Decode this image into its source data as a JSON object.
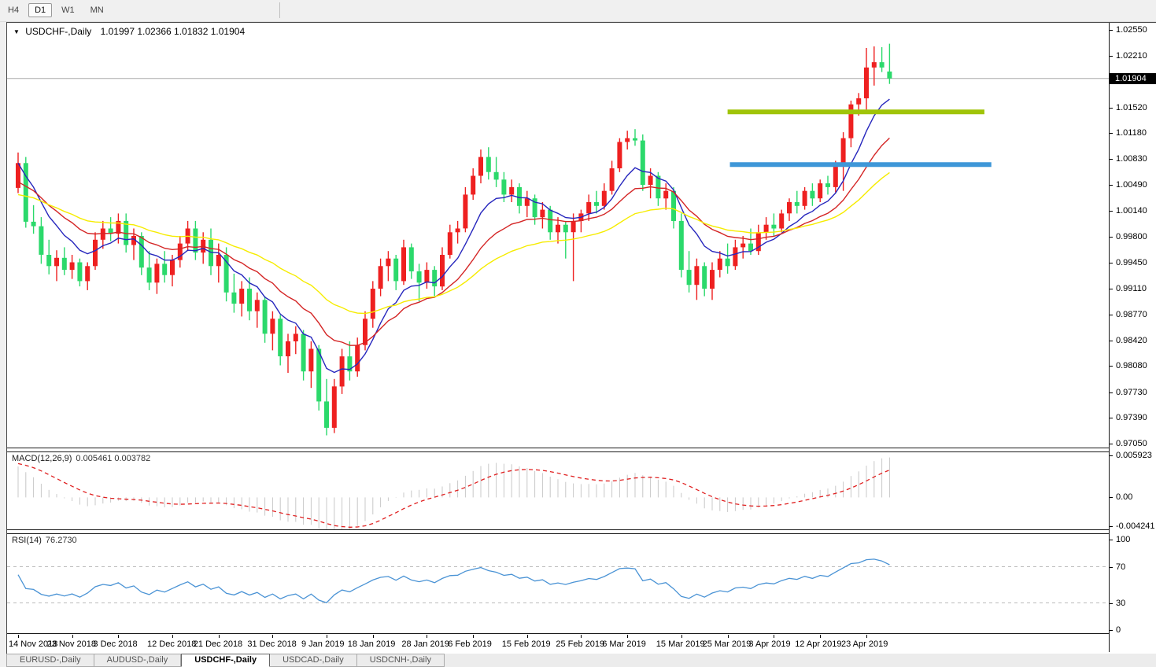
{
  "toolbar": {
    "buttons": [
      {
        "label": "H4",
        "active": false
      },
      {
        "label": "D1",
        "active": true
      },
      {
        "label": "W1",
        "active": false
      },
      {
        "label": "MN",
        "active": false
      }
    ]
  },
  "title": {
    "symbol": "USDCHF-,Daily",
    "ohlc": "1.01997 1.02366 1.01832 1.01904"
  },
  "tabs": [
    {
      "label": "EURUSD-,Daily",
      "active": false
    },
    {
      "label": "AUDUSD-,Daily",
      "active": false
    },
    {
      "label": "USDCHF-,Daily",
      "active": true
    },
    {
      "label": "USDCAD-,Daily",
      "active": false
    },
    {
      "label": "USDCNH-,Daily",
      "active": false
    }
  ],
  "chart_data": {
    "type": "candlestick",
    "symbol": "USDCHF",
    "timeframe": "Daily",
    "last_candle": {
      "open": 1.01997,
      "high": 1.02366,
      "low": 1.01832,
      "close": 1.01904
    },
    "colors": {
      "bull": "#ee2020",
      "bear": "#2bd96b",
      "ma_fast": "#2626bd",
      "ma_mid": "#d42525",
      "ma_slow": "#f6ec00",
      "hline_olive": "#a0c408",
      "hline_blue": "#3e97d8",
      "current_price_line": "#a8a8a8",
      "macd_hist": "#c8c8c8",
      "macd_signal": "#e02020",
      "rsi_line": "#4a93d5",
      "rsi_levels": "#bbbbbb"
    },
    "price_axis": {
      "max": 1.0255,
      "min": 0.9705,
      "labels": [
        "1.02550",
        "1.02210",
        "1.01520",
        "1.01180",
        "1.00830",
        "1.00490",
        "1.00140",
        "0.99800",
        "0.99450",
        "0.99110",
        "0.98770",
        "0.98420",
        "0.98080",
        "0.97730",
        "0.97390",
        "0.97050"
      ],
      "current": "1.01904",
      "current_value": 1.01904
    },
    "x_labels": [
      {
        "t": "14 Nov 2018",
        "i": 0
      },
      {
        "t": "23 Nov 2018",
        "i": 7
      },
      {
        "t": "3 Dec 2018",
        "i": 13
      },
      {
        "t": "12 Dec 2018",
        "i": 20
      },
      {
        "t": "21 Dec 2018",
        "i": 26
      },
      {
        "t": "31 Dec 2018",
        "i": 33
      },
      {
        "t": "9 Jan 2019",
        "i": 40
      },
      {
        "t": "18 Jan 2019",
        "i": 46
      },
      {
        "t": "28 Jan 2019",
        "i": 53
      },
      {
        "t": "6 Feb 2019",
        "i": 59
      },
      {
        "t": "15 Feb 2019",
        "i": 66
      },
      {
        "t": "25 Feb 2019",
        "i": 73
      },
      {
        "t": "6 Mar 2019",
        "i": 79
      },
      {
        "t": "15 Mar 2019",
        "i": 86
      },
      {
        "t": "25 Mar 2019",
        "i": 92
      },
      {
        "t": "3 Apr 2019",
        "i": 98
      },
      {
        "t": "12 Apr 2019",
        "i": 104
      },
      {
        "t": "23 Apr 2019",
        "i": 110
      }
    ],
    "candles": [
      [
        1.0045,
        1.0092,
        1.0038,
        1.0078
      ],
      [
        1.0078,
        1.0086,
        0.9992,
        1.0
      ],
      [
        1.0,
        1.0022,
        0.9984,
        0.9994
      ],
      [
        0.9994,
        1.0006,
        0.9944,
        0.9956
      ],
      [
        0.9956,
        0.9976,
        0.993,
        0.9941
      ],
      [
        0.9941,
        0.9962,
        0.9921,
        0.9952
      ],
      [
        0.9952,
        0.9966,
        0.9929,
        0.9936
      ],
      [
        0.9936,
        0.9956,
        0.9924,
        0.9946
      ],
      [
        0.9946,
        0.9951,
        0.9914,
        0.9921
      ],
      [
        0.9921,
        0.9946,
        0.9909,
        0.9941
      ],
      [
        0.9941,
        0.9986,
        0.9936,
        0.9976
      ],
      [
        0.9976,
        1.0001,
        0.9964,
        0.9991
      ],
      [
        0.9991,
        1.0006,
        0.9974,
        0.9984
      ],
      [
        0.9984,
        1.0011,
        0.9971,
        1.0001
      ],
      [
        1.0001,
        1.0011,
        0.9959,
        0.9969
      ],
      [
        0.9969,
        0.9991,
        0.9949,
        0.9981
      ],
      [
        0.9981,
        0.9986,
        0.9929,
        0.9939
      ],
      [
        0.9939,
        0.9961,
        0.9909,
        0.9919
      ],
      [
        0.9919,
        0.9951,
        0.9904,
        0.9944
      ],
      [
        0.9944,
        0.9961,
        0.9919,
        0.9929
      ],
      [
        0.9929,
        0.9956,
        0.9914,
        0.9949
      ],
      [
        0.9949,
        0.9981,
        0.9939,
        0.9971
      ],
      [
        0.9971,
        1.0001,
        0.9961,
        0.9991
      ],
      [
        0.9991,
        1.0001,
        0.9949,
        0.9959
      ],
      [
        0.9959,
        0.9986,
        0.9944,
        0.9976
      ],
      [
        0.9976,
        0.9991,
        0.9929,
        0.9941
      ],
      [
        0.9941,
        0.9971,
        0.9919,
        0.9956
      ],
      [
        0.9956,
        0.9966,
        0.9894,
        0.9906
      ],
      [
        0.9906,
        0.9931,
        0.9879,
        0.9891
      ],
      [
        0.9891,
        0.9921,
        0.9874,
        0.9911
      ],
      [
        0.9911,
        0.9926,
        0.9869,
        0.9881
      ],
      [
        0.9881,
        0.9906,
        0.9859,
        0.9896
      ],
      [
        0.9896,
        0.9901,
        0.9839,
        0.9851
      ],
      [
        0.9851,
        0.9881,
        0.9829,
        0.9871
      ],
      [
        0.9871,
        0.9876,
        0.9809,
        0.9821
      ],
      [
        0.9821,
        0.9851,
        0.9799,
        0.9841
      ],
      [
        0.9841,
        0.9861,
        0.9824,
        0.9851
      ],
      [
        0.9851,
        0.9856,
        0.9789,
        0.9801
      ],
      [
        0.9801,
        0.9841,
        0.9779,
        0.9831
      ],
      [
        0.9831,
        0.9836,
        0.9749,
        0.9761
      ],
      [
        0.9761,
        0.9791,
        0.9716,
        0.9726
      ],
      [
        0.9726,
        0.9791,
        0.9719,
        0.9781
      ],
      [
        0.9781,
        0.9831,
        0.9771,
        0.9821
      ],
      [
        0.9821,
        0.9841,
        0.9789,
        0.9801
      ],
      [
        0.9801,
        0.9846,
        0.9794,
        0.9836
      ],
      [
        0.9836,
        0.9881,
        0.9829,
        0.9871
      ],
      [
        0.9871,
        0.9921,
        0.9859,
        0.9911
      ],
      [
        0.9911,
        0.9951,
        0.9901,
        0.9941
      ],
      [
        0.9941,
        0.9961,
        0.9921,
        0.9951
      ],
      [
        0.9951,
        0.9956,
        0.9909,
        0.9921
      ],
      [
        0.9921,
        0.9976,
        0.9916,
        0.9966
      ],
      [
        0.9966,
        0.9971,
        0.9924,
        0.9934
      ],
      [
        0.9934,
        0.9944,
        0.9894,
        0.9919
      ],
      [
        0.9919,
        0.9946,
        0.9911,
        0.9936
      ],
      [
        0.9936,
        0.9941,
        0.9901,
        0.9914
      ],
      [
        0.9914,
        0.9966,
        0.9909,
        0.9956
      ],
      [
        0.9956,
        0.9996,
        0.9951,
        0.9986
      ],
      [
        0.9986,
        1.0001,
        0.9971,
        0.9991
      ],
      [
        0.9991,
        1.0046,
        0.9986,
        1.0036
      ],
      [
        1.0036,
        1.0071,
        1.0029,
        1.0061
      ],
      [
        1.0061,
        1.0096,
        1.0051,
        1.0086
      ],
      [
        1.0086,
        1.0099,
        1.0056,
        1.0066
      ],
      [
        1.0066,
        1.0086,
        1.0046,
        1.0056
      ],
      [
        1.0056,
        1.0066,
        1.0026,
        1.0036
      ],
      [
        1.0036,
        1.0056,
        1.0026,
        1.0046
      ],
      [
        1.0046,
        1.0051,
        1.0011,
        1.0021
      ],
      [
        1.0021,
        1.0041,
        1.0006,
        1.0031
      ],
      [
        1.0031,
        1.0036,
        0.9996,
        1.0006
      ],
      [
        1.0006,
        1.0026,
        0.9991,
        1.0016
      ],
      [
        1.0016,
        1.0021,
        0.9976,
        0.9986
      ],
      [
        0.9986,
        1.0006,
        0.9971,
        0.9996
      ],
      [
        0.9996,
        1.0001,
        0.9951,
        0.9986
      ],
      [
        0.9986,
        1.0011,
        0.9921,
        1.0001
      ],
      [
        1.0001,
        1.0016,
        0.9986,
        1.0011
      ],
      [
        1.0011,
        1.0036,
        1.0001,
        1.0026
      ],
      [
        1.0026,
        1.0041,
        1.0011,
        1.0021
      ],
      [
        1.0021,
        1.0051,
        1.0016,
        1.0041
      ],
      [
        1.0041,
        1.0081,
        1.0036,
        1.0071
      ],
      [
        1.0071,
        1.0111,
        1.0066,
        1.0106
      ],
      [
        1.0106,
        1.0121,
        1.0096,
        1.0111
      ],
      [
        1.0111,
        1.0123,
        1.0101,
        1.0108
      ],
      [
        1.0108,
        1.0116,
        1.0041,
        1.0049
      ],
      [
        1.0049,
        1.0071,
        1.0031,
        1.0061
      ],
      [
        1.0061,
        1.0066,
        1.0021,
        1.0031
      ],
      [
        1.0031,
        1.0051,
        1.0016,
        1.0041
      ],
      [
        1.0041,
        1.0046,
        0.9991,
        1.0001
      ],
      [
        1.0001,
        1.0011,
        0.9926,
        0.9936
      ],
      [
        0.9936,
        0.9961,
        0.9906,
        0.9916
      ],
      [
        0.9916,
        0.9951,
        0.9896,
        0.9941
      ],
      [
        0.9941,
        0.9946,
        0.9901,
        0.9911
      ],
      [
        0.9911,
        0.9946,
        0.9896,
        0.9936
      ],
      [
        0.9936,
        0.9961,
        0.9926,
        0.9951
      ],
      [
        0.9951,
        0.9971,
        0.9931,
        0.9941
      ],
      [
        0.9941,
        0.9976,
        0.9936,
        0.9966
      ],
      [
        0.9966,
        0.9981,
        0.9951,
        0.9971
      ],
      [
        0.9971,
        0.9991,
        0.9956,
        0.9961
      ],
      [
        0.9961,
        0.9996,
        0.9956,
        0.9986
      ],
      [
        0.9986,
        1.0006,
        0.9976,
        0.9996
      ],
      [
        0.9996,
        1.0011,
        0.9981,
        0.9991
      ],
      [
        0.9991,
        1.0016,
        0.9986,
        1.0011
      ],
      [
        1.0011,
        1.0031,
        1.0001,
        1.0026
      ],
      [
        1.0026,
        1.0041,
        1.0011,
        1.0021
      ],
      [
        1.0021,
        1.0046,
        1.0016,
        1.0041
      ],
      [
        1.0041,
        1.0051,
        1.0021,
        1.0031
      ],
      [
        1.0031,
        1.0056,
        1.0026,
        1.0051
      ],
      [
        1.0051,
        1.0061,
        1.0036,
        1.0046
      ],
      [
        1.0046,
        1.0081,
        1.0039,
        1.0076
      ],
      [
        1.0076,
        1.0119,
        1.0041,
        1.0111
      ],
      [
        1.0111,
        1.0161,
        1.0099,
        1.0156
      ],
      [
        1.0156,
        1.0171,
        1.0141,
        1.0164
      ],
      [
        1.0164,
        1.0231,
        1.0149,
        1.0205
      ],
      [
        1.0205,
        1.0233,
        1.0181,
        1.0212
      ],
      [
        1.0212,
        1.0232,
        1.0199,
        1.0205
      ],
      [
        1.01997,
        1.02366,
        1.01832,
        1.01904
      ]
    ],
    "overlays": [
      {
        "name": "ma-fast",
        "type": "ema",
        "period": 8,
        "seed_offset": 0.0,
        "color": "#2626bd"
      },
      {
        "name": "ma-mid",
        "type": "ema",
        "period": 17,
        "seed_offset": -0.0025,
        "color": "#d42525"
      },
      {
        "name": "ma-slow",
        "type": "ema",
        "period": 34,
        "seed_offset": -0.0042,
        "color": "#f6ec00"
      }
    ],
    "hlines": [
      {
        "name": "resistance-olive",
        "price": 1.0146,
        "i1": 92.0,
        "i2": 125.3,
        "color": "#a0c408",
        "width": 6
      },
      {
        "name": "support-blue",
        "price": 1.0076,
        "i1": 92.3,
        "i2": 126.2,
        "color": "#3e97d8",
        "width": 6
      }
    ],
    "macd": {
      "label": "MACD(12,26,9)",
      "values": "0.005461 0.003782",
      "main_value": 0.005461,
      "signal_value": 0.003782,
      "params": [
        12,
        26,
        9
      ],
      "seed_fast_offset": -0.002,
      "seed_slow_offset": -0.0062,
      "seed_signal_offset": 0.0004,
      "axis": {
        "max": 0.005923,
        "min": -0.004241,
        "labels": [
          "0.005923",
          "0.00",
          "-0.004241"
        ]
      }
    },
    "rsi": {
      "label": "RSI(14)",
      "value": "76.2730",
      "period": 14,
      "seed_gain": 0.0011,
      "seed_loss": 0.0007,
      "axis_labels": [
        "100",
        "70",
        "30",
        "0"
      ],
      "levels": [
        70,
        30
      ],
      "range": [
        0,
        100
      ]
    }
  }
}
